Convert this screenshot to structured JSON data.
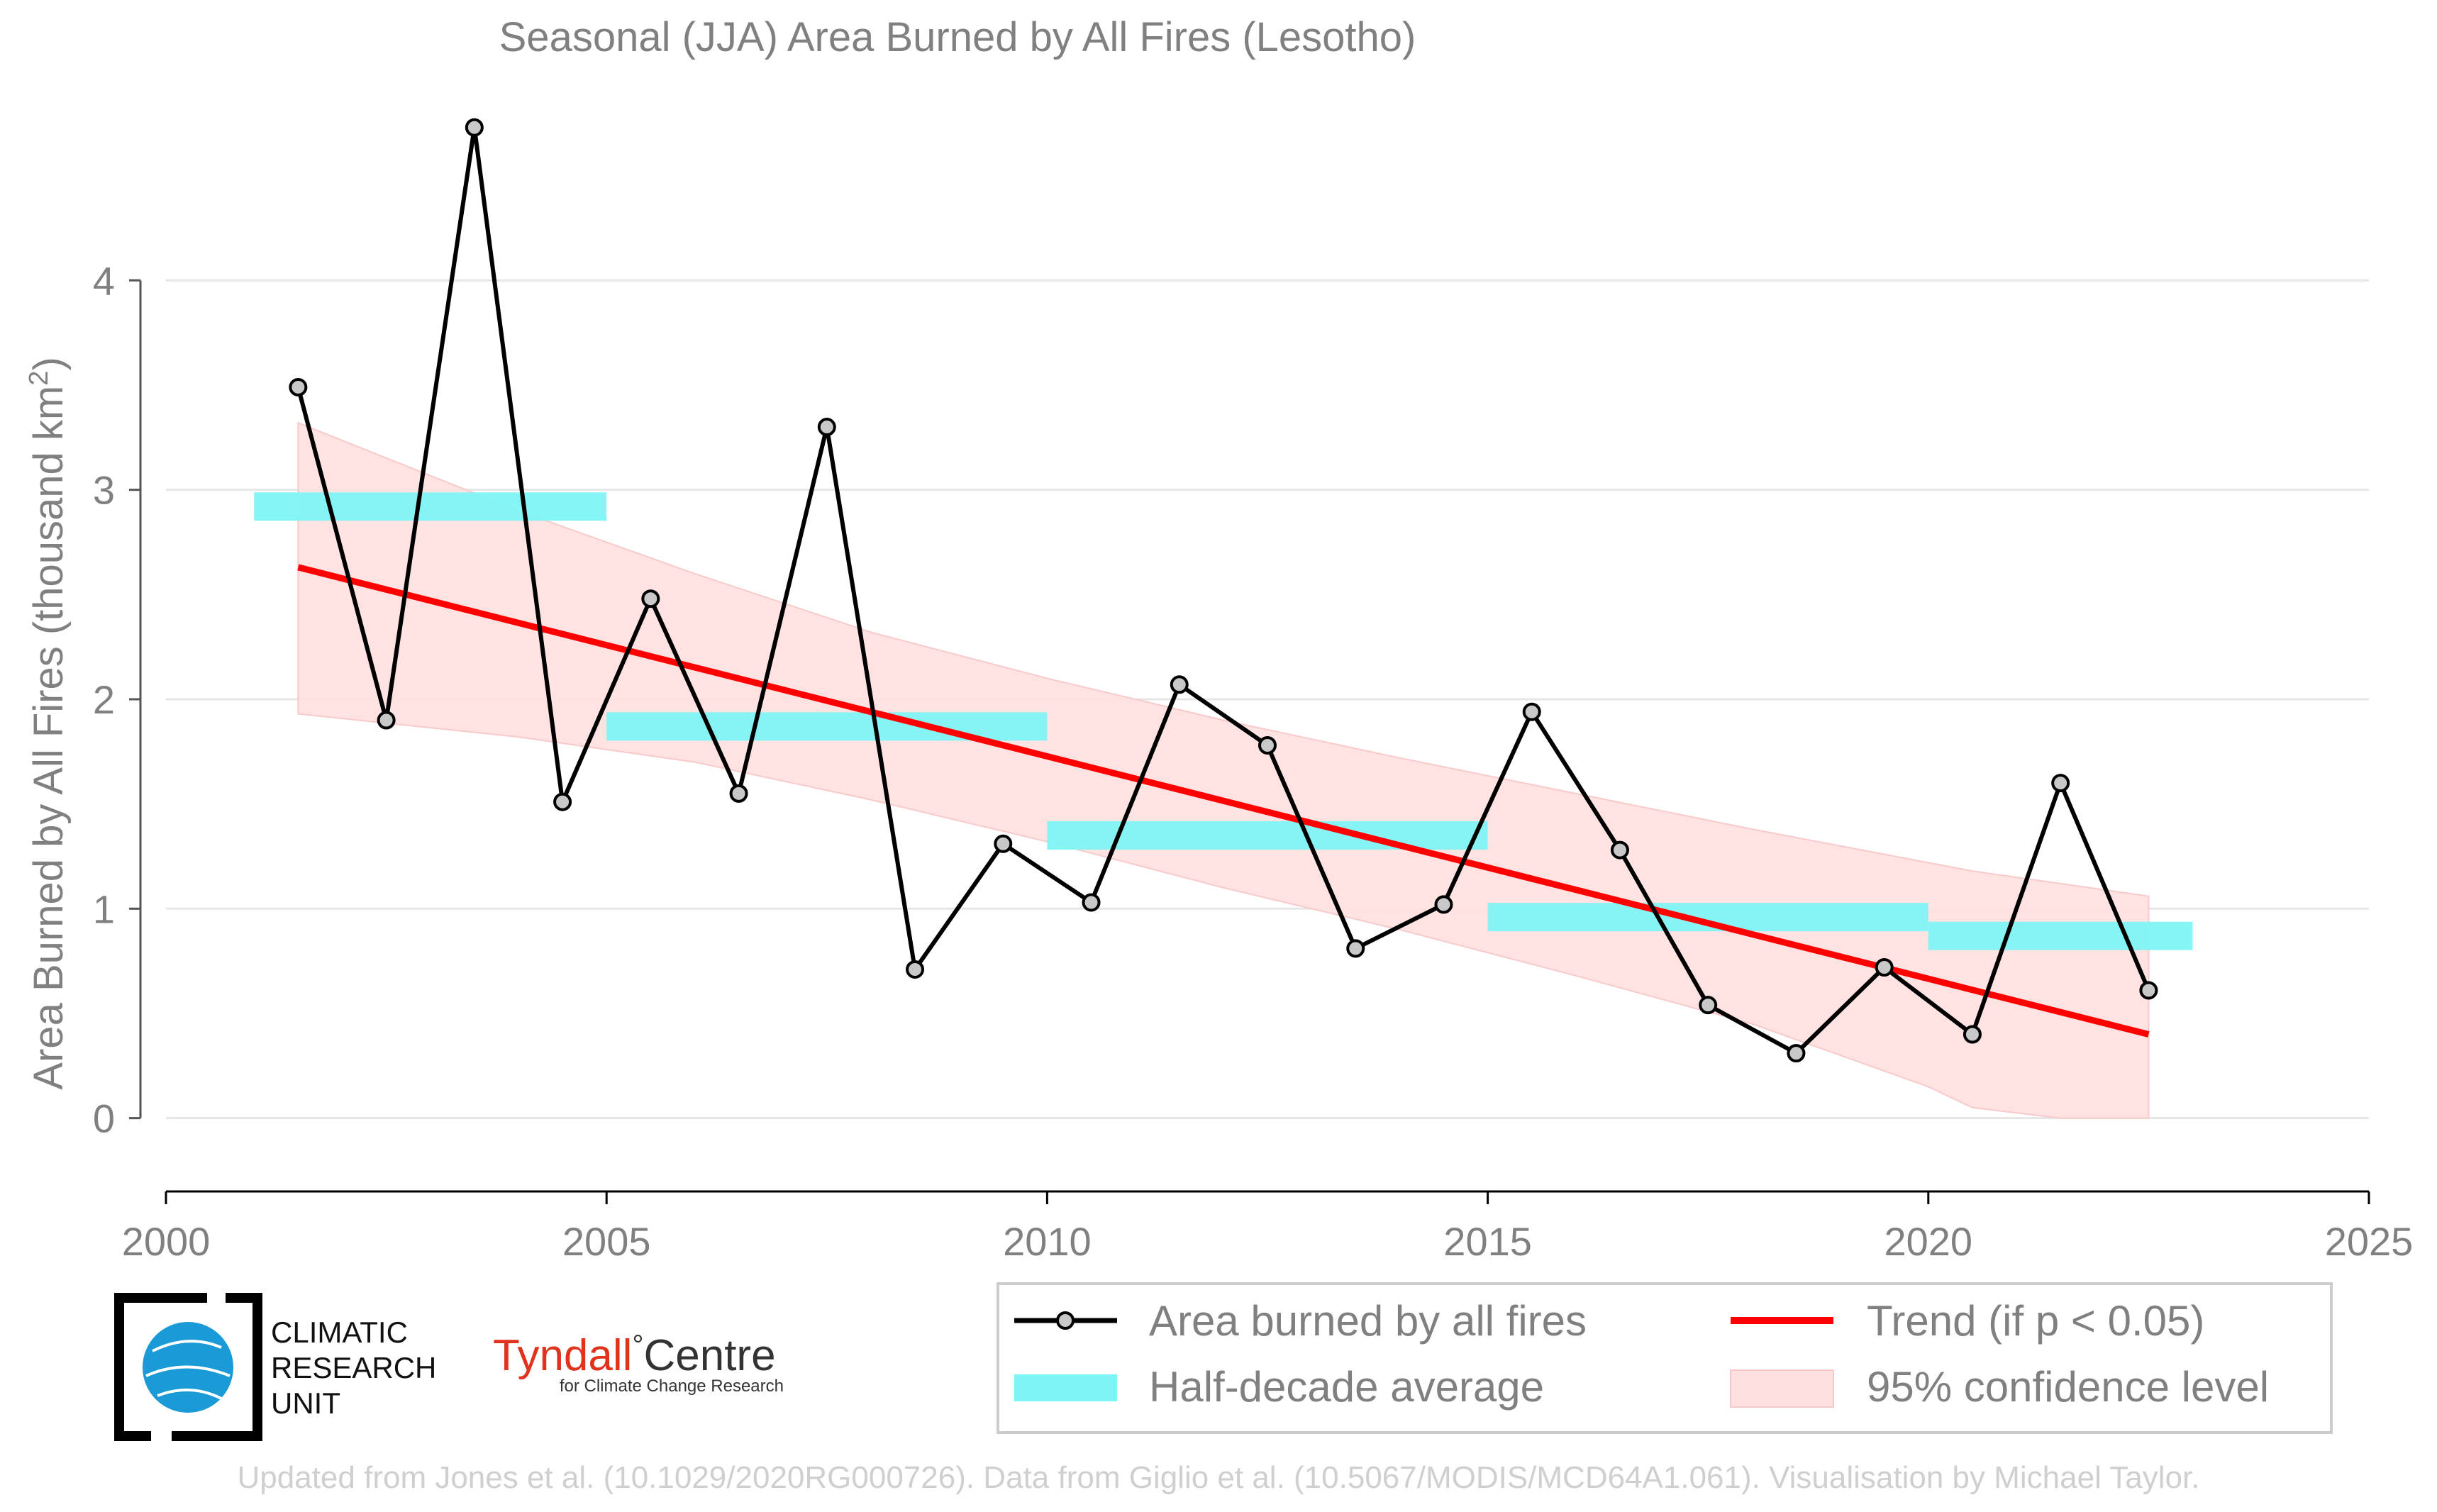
{
  "chart_data": {
    "type": "line",
    "title": "Seasonal (JJA) Area Burned by All Fires (Lesotho)",
    "ylabel": "Area Burned by All Fires (thousand km",
    "ylabel_sup": "2",
    "ylabel_end": ")",
    "xlim": [
      2000,
      2025
    ],
    "ylim": [
      -0.35,
      5.0
    ],
    "xticks": [
      2000,
      2005,
      2010,
      2015,
      2020,
      2025
    ],
    "yticks": [
      0,
      1,
      2,
      3,
      4
    ],
    "grid": true,
    "legend_position": "bottom-right",
    "series": [
      {
        "name": "Area burned by all fires",
        "color": "#000000",
        "marker_color": "#c8c8c8",
        "x": [
          2001.5,
          2002.5,
          2003.5,
          2004.5,
          2005.5,
          2006.5,
          2007.5,
          2008.5,
          2009.5,
          2010.5,
          2011.5,
          2012.5,
          2013.5,
          2014.5,
          2015.5,
          2016.5,
          2017.5,
          2018.5,
          2019.5,
          2020.5,
          2021.5,
          2022.5
        ],
        "y": [
          3.49,
          1.9,
          4.73,
          1.51,
          2.48,
          1.55,
          3.3,
          0.71,
          1.31,
          1.03,
          2.07,
          1.78,
          0.81,
          1.02,
          1.94,
          1.28,
          0.54,
          0.31,
          0.72,
          0.4,
          1.6,
          0.61
        ]
      }
    ],
    "half_decade_average": {
      "name": "Half-decade average",
      "color": "#7ff4f4",
      "segments": [
        {
          "x0": 2001.0,
          "x1": 2005.0,
          "value": 2.92
        },
        {
          "x0": 2005.0,
          "x1": 2010.0,
          "value": 1.87
        },
        {
          "x0": 2010.0,
          "x1": 2015.0,
          "value": 1.35
        },
        {
          "x0": 2015.0,
          "x1": 2020.0,
          "value": 0.96
        },
        {
          "x0": 2020.0,
          "x1": 2023.0,
          "value": 0.87
        }
      ]
    },
    "trend": {
      "name": "Trend (if p < 0.05)",
      "color": "#ff0000",
      "x": [
        2001.5,
        2022.5
      ],
      "y": [
        2.63,
        0.4
      ]
    },
    "confidence": {
      "name": "95% confidence level",
      "color": "#ffe0e0",
      "x": [
        2001.5,
        2004,
        2006,
        2008,
        2010,
        2012,
        2014,
        2016,
        2018,
        2020,
        2020.5,
        2021.5,
        2022.5
      ],
      "upper": [
        3.32,
        2.9,
        2.6,
        2.32,
        2.1,
        1.9,
        1.72,
        1.55,
        1.38,
        1.22,
        1.18,
        1.12,
        1.06
      ],
      "lower": [
        1.93,
        1.82,
        1.7,
        1.52,
        1.32,
        1.1,
        0.9,
        0.68,
        0.45,
        0.15,
        0.05,
        0.0,
        0.0
      ]
    }
  },
  "legend": {
    "line_label": "Area burned by all fires",
    "trend_label": "Trend (if p < 0.05)",
    "avg_label": "Half-decade average",
    "ci_label": "95% confidence level"
  },
  "logos": {
    "cru_line1": "CLIMATIC",
    "cru_line2": "RESEARCH",
    "cru_line3": "UNIT",
    "tyndall_name": "Tyndall",
    "tyndall_deg": "°",
    "tyndall_centre": "Centre",
    "tyndall_sub": "for Climate Change Research"
  },
  "footer": "Updated from Jones et al. (10.1029/2020RG000726). Data from Giglio et al. (10.5067/MODIS/MCD64A1.061). Visualisation by Michael Taylor."
}
